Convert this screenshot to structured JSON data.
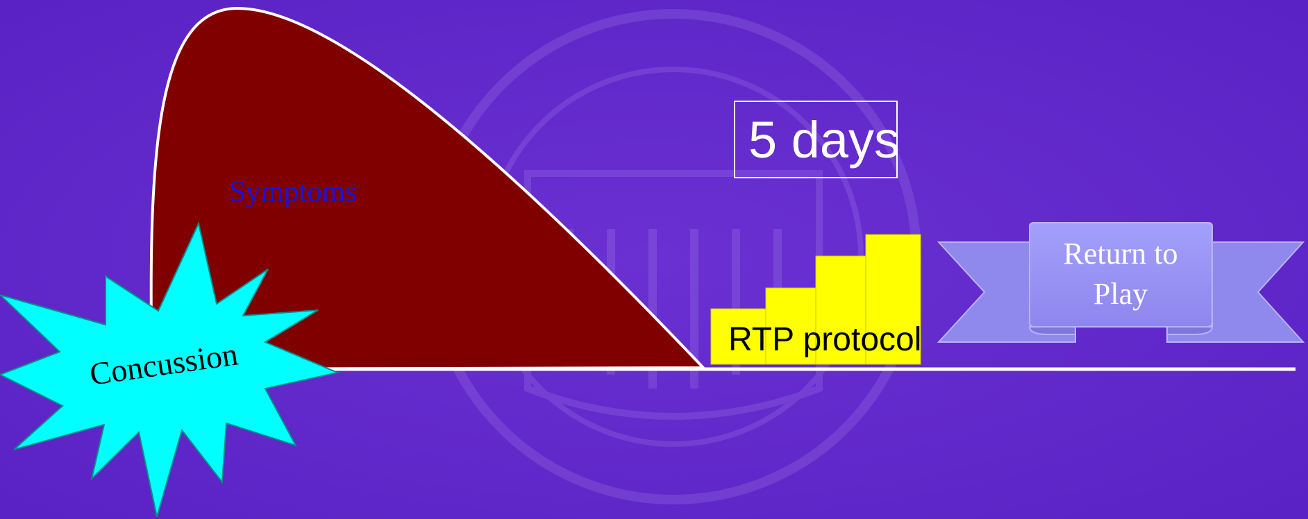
{
  "symptoms": {
    "label": "Symptoms"
  },
  "duration": {
    "label": "5 days"
  },
  "protocol": {
    "label": "RTP protocol"
  },
  "concussion": {
    "label": "Concussion"
  },
  "ribbon": {
    "lines": [
      "Return to",
      "Play"
    ]
  }
}
